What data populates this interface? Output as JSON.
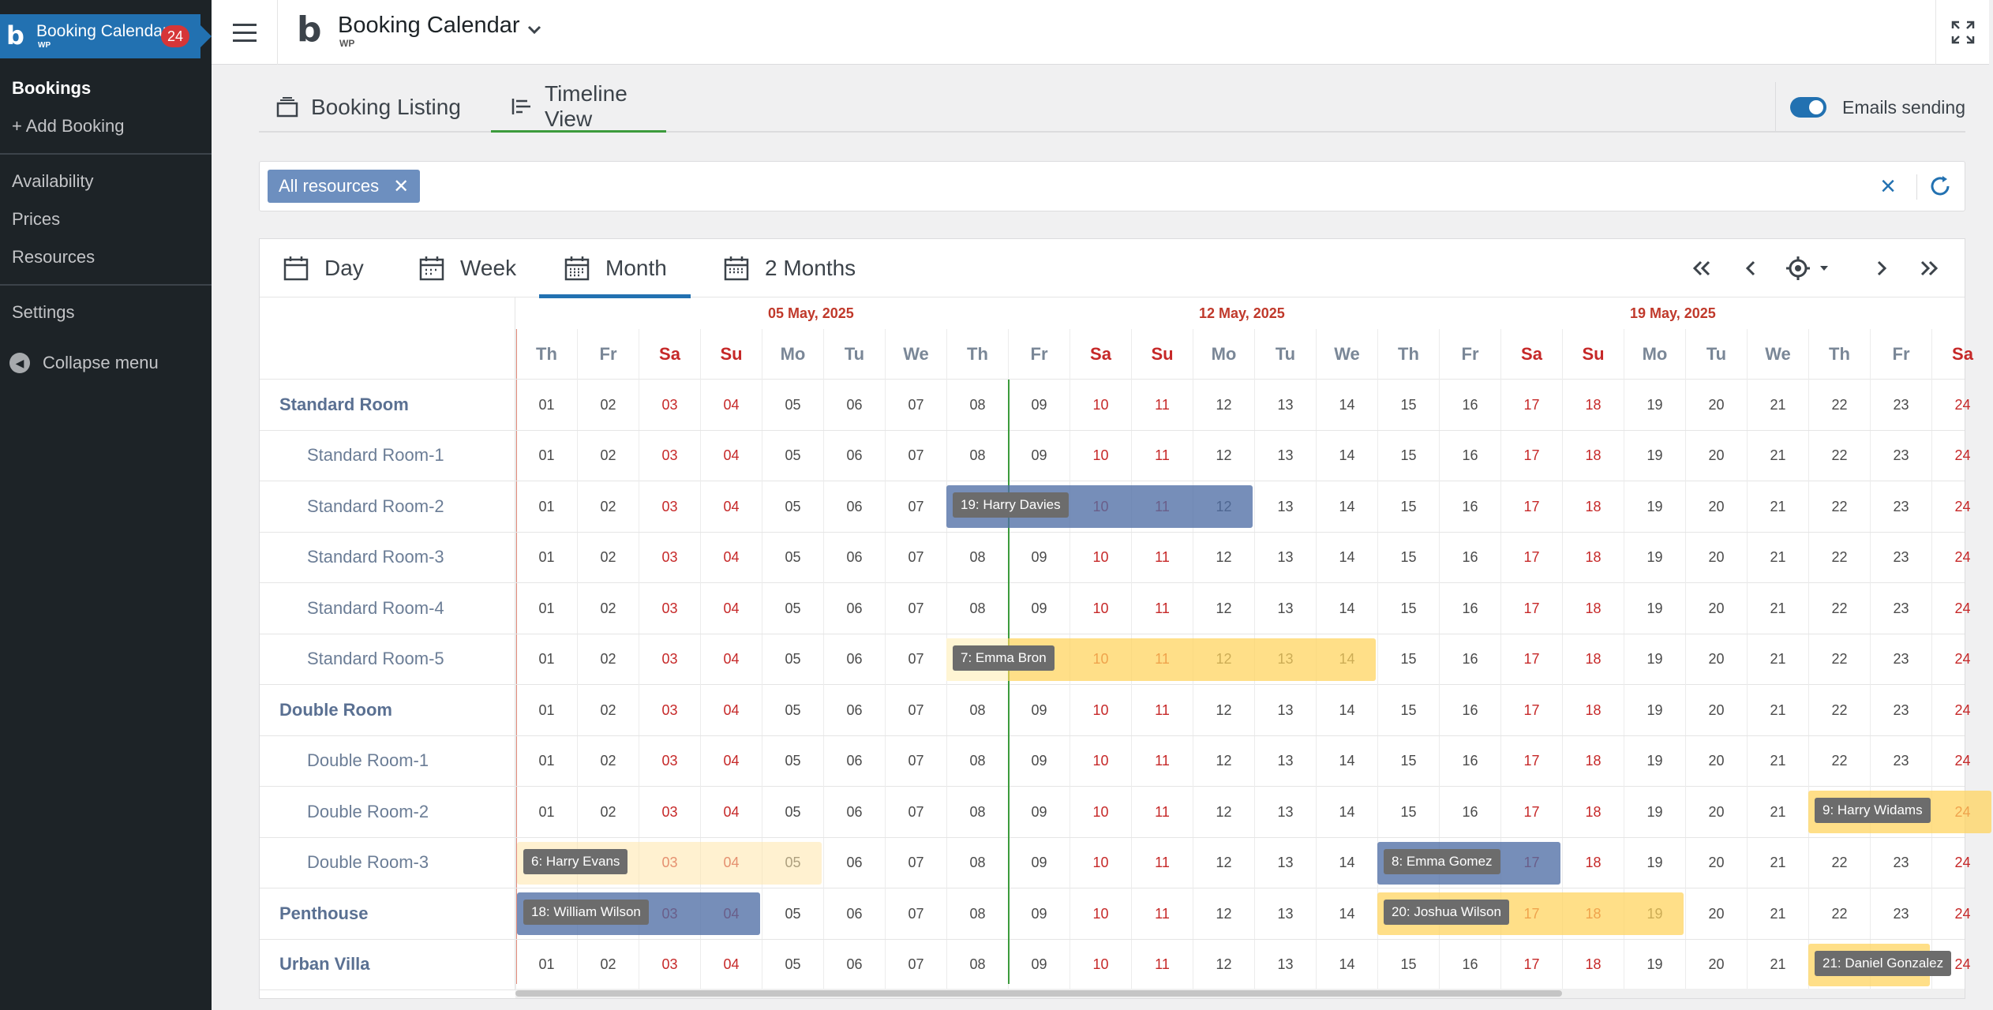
{
  "wp_sidebar": {
    "brand_title": "Booking Calendar",
    "brand_sub": "WP",
    "badge_count": "24",
    "items": [
      {
        "label": "Bookings",
        "current": true
      },
      {
        "label": "+ Add Booking",
        "current": false
      },
      {
        "label": "Availability",
        "current": false
      },
      {
        "label": "Prices",
        "current": false
      },
      {
        "label": "Resources",
        "current": false
      },
      {
        "label": "Settings",
        "current": false
      }
    ],
    "collapse_label": "Collapse menu"
  },
  "topbar": {
    "title": "Booking Calendar",
    "subtitle": "WP"
  },
  "main_tabs": [
    {
      "label": "Booking Listing",
      "icon": "inbox-stack-icon",
      "active": false
    },
    {
      "label": "Timeline View",
      "icon": "timeline-icon",
      "active": true
    }
  ],
  "emails_sending": {
    "label": "Emails sending",
    "enabled": true
  },
  "filter": {
    "chip_label": "All resources"
  },
  "view_tabs": [
    {
      "label": "Day",
      "active": false
    },
    {
      "label": "Week",
      "active": false
    },
    {
      "label": "Month",
      "active": true
    },
    {
      "label": "2 Months",
      "active": false
    }
  ],
  "week_labels": [
    {
      "label": "05 May, 2025",
      "col": 4
    },
    {
      "label": "12 May, 2025",
      "col": 11
    },
    {
      "label": "19 May, 2025",
      "col": 18
    }
  ],
  "days": [
    {
      "dow": "Th",
      "date": "01",
      "we": false
    },
    {
      "dow": "Fr",
      "date": "02",
      "we": false
    },
    {
      "dow": "Sa",
      "date": "03",
      "we": true
    },
    {
      "dow": "Su",
      "date": "04",
      "we": true
    },
    {
      "dow": "Mo",
      "date": "05",
      "we": false
    },
    {
      "dow": "Tu",
      "date": "06",
      "we": false
    },
    {
      "dow": "We",
      "date": "07",
      "we": false
    },
    {
      "dow": "Th",
      "date": "08",
      "we": false
    },
    {
      "dow": "Fr",
      "date": "09",
      "we": false
    },
    {
      "dow": "Sa",
      "date": "10",
      "we": true
    },
    {
      "dow": "Su",
      "date": "11",
      "we": true
    },
    {
      "dow": "Mo",
      "date": "12",
      "we": false
    },
    {
      "dow": "Tu",
      "date": "13",
      "we": false
    },
    {
      "dow": "We",
      "date": "14",
      "we": false
    },
    {
      "dow": "Th",
      "date": "15",
      "we": false
    },
    {
      "dow": "Fr",
      "date": "16",
      "we": false
    },
    {
      "dow": "Sa",
      "date": "17",
      "we": true
    },
    {
      "dow": "Su",
      "date": "18",
      "we": true
    },
    {
      "dow": "Mo",
      "date": "19",
      "we": false
    },
    {
      "dow": "Tu",
      "date": "20",
      "we": false
    },
    {
      "dow": "We",
      "date": "21",
      "we": false
    },
    {
      "dow": "Th",
      "date": "22",
      "we": false
    },
    {
      "dow": "Fr",
      "date": "23",
      "we": false
    },
    {
      "dow": "Sa",
      "date": "24",
      "we": true
    }
  ],
  "today_col": 8,
  "resources": [
    {
      "name": "Standard Room",
      "type": "group"
    },
    {
      "name": "Standard Room-1",
      "type": "child"
    },
    {
      "name": "Standard Room-2",
      "type": "child"
    },
    {
      "name": "Standard Room-3",
      "type": "child"
    },
    {
      "name": "Standard Room-4",
      "type": "child"
    },
    {
      "name": "Standard Room-5",
      "type": "child"
    },
    {
      "name": "Double Room",
      "type": "group"
    },
    {
      "name": "Double Room-1",
      "type": "child"
    },
    {
      "name": "Double Room-2",
      "type": "child"
    },
    {
      "name": "Double Room-3",
      "type": "child"
    },
    {
      "name": "Penthouse",
      "type": "group"
    },
    {
      "name": "Urban Villa",
      "type": "group"
    }
  ],
  "bookings": [
    {
      "label": "19: Harry Davies",
      "row": 2,
      "start": 7.0,
      "end": 12,
      "color": "blue"
    },
    {
      "label": "7: Emma Bron",
      "row": 5,
      "start": 7.0,
      "end": 14,
      "color": "yellow",
      "pending_until": 8
    },
    {
      "label": "9: Harry Widams",
      "row": 8,
      "start": 21.0,
      "end": 24,
      "color": "yellow"
    },
    {
      "label": "6: Harry Evans",
      "row": 9,
      "start": 0,
      "end": 5,
      "color": "lightyellow"
    },
    {
      "label": "8: Emma Gomez",
      "row": 9,
      "start": 14.0,
      "end": 17,
      "color": "blue"
    },
    {
      "label": "18: William Wilson",
      "row": 10,
      "start": 0,
      "end": 4,
      "color": "blue"
    },
    {
      "label": "20: Joshua Wilson",
      "row": 10,
      "start": 14.0,
      "end": 19,
      "color": "yellow"
    },
    {
      "label": "21: Daniel Gonzalez",
      "row": 11,
      "start": 21.0,
      "end": 23,
      "color": "yellow"
    }
  ],
  "colors": {
    "wp_blue": "#2271b1",
    "weekend_red": "#c62828",
    "today_green": "#3c9b3c"
  }
}
